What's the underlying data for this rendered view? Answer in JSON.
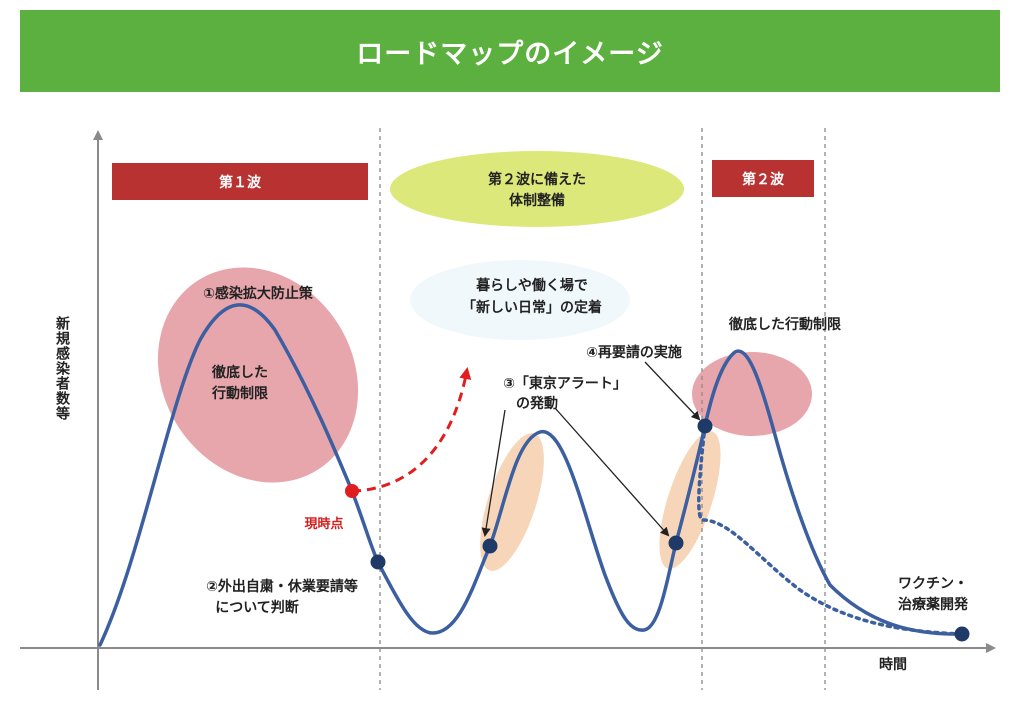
{
  "title": "ロードマップのイメージ",
  "axis": {
    "y_label": "新規感染者数等",
    "x_label": "時間"
  },
  "phases": {
    "wave1": "第１波",
    "prep_line1": "第２波に備えた",
    "prep_line2": "体制整備",
    "wave2": "第２波"
  },
  "annotations": {
    "measure1": "①感染拡大防止策",
    "strict1_line1": "徹底した",
    "strict1_line2": "行動制限",
    "now": "現時点",
    "judgement_line1": "②外出自粛・休業要請等",
    "judgement_line2": "について判断",
    "new_normal_line1": "暮らしや働く場で",
    "new_normal_line2": "「新しい日常」の定着",
    "alert_line1": "③「東京アラート」",
    "alert_line2": "の発動",
    "re_request": "④再要請の実施",
    "strict2": "徹底した行動制限",
    "vaccine_line1": "ワクチン・",
    "vaccine_line2": "治療薬開発"
  },
  "colors": {
    "banner": "#5cb03f",
    "phase_red": "#b83232",
    "prep_ellipse": "#dde87a",
    "curve": "#3b5fa0",
    "marker": "#1f3a66",
    "current_point": "#e01e1e",
    "pink_ellipse": "#e08d95",
    "peach_ellipse": "#f6d0b0",
    "divider": "#8a8a8a"
  }
}
